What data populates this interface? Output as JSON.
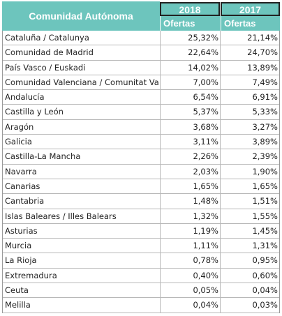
{
  "header": {
    "ca_label": "Comunidad Autónoma",
    "year_2018": "2018",
    "year_2017": "2017",
    "sub_2018": "Ofertas",
    "sub_2017": "Ofertas"
  },
  "rows": [
    {
      "name": "Cataluña / Catalunya",
      "v2018": "25,32%",
      "v2017": "21,14%"
    },
    {
      "name": "Comunidad de Madrid",
      "v2018": "22,64%",
      "v2017": "24,70%"
    },
    {
      "name": "País Vasco / Euskadi",
      "v2018": "14,02%",
      "v2017": "13,89%"
    },
    {
      "name": "Comunidad Valenciana / Comunitat Va",
      "v2018": "7,00%",
      "v2017": "7,49%"
    },
    {
      "name": "Andalucía",
      "v2018": "6,54%",
      "v2017": "6,91%"
    },
    {
      "name": "Castilla y León",
      "v2018": "5,37%",
      "v2017": "5,33%"
    },
    {
      "name": "Aragón",
      "v2018": "3,68%",
      "v2017": "3,27%"
    },
    {
      "name": "Galicia",
      "v2018": "3,11%",
      "v2017": "3,89%"
    },
    {
      "name": "Castilla-La Mancha",
      "v2018": "2,26%",
      "v2017": "2,39%"
    },
    {
      "name": "Navarra",
      "v2018": "2,03%",
      "v2017": "1,90%"
    },
    {
      "name": "Canarias",
      "v2018": "1,65%",
      "v2017": "1,65%"
    },
    {
      "name": "Cantabria",
      "v2018": "1,48%",
      "v2017": "1,51%"
    },
    {
      "name": "Islas Baleares / Illes Balears",
      "v2018": "1,32%",
      "v2017": "1,55%"
    },
    {
      "name": "Asturias",
      "v2018": "1,19%",
      "v2017": "1,45%"
    },
    {
      "name": "Murcia",
      "v2018": "1,11%",
      "v2017": "1,31%"
    },
    {
      "name": "La Rioja",
      "v2018": "0,78%",
      "v2017": "0,95%"
    },
    {
      "name": "Extremadura",
      "v2018": "0,40%",
      "v2017": "0,60%"
    },
    {
      "name": "Ceuta",
      "v2018": "0,05%",
      "v2017": "0,04%"
    },
    {
      "name": "Melilla",
      "v2018": "0,04%",
      "v2017": "0,03%"
    }
  ]
}
